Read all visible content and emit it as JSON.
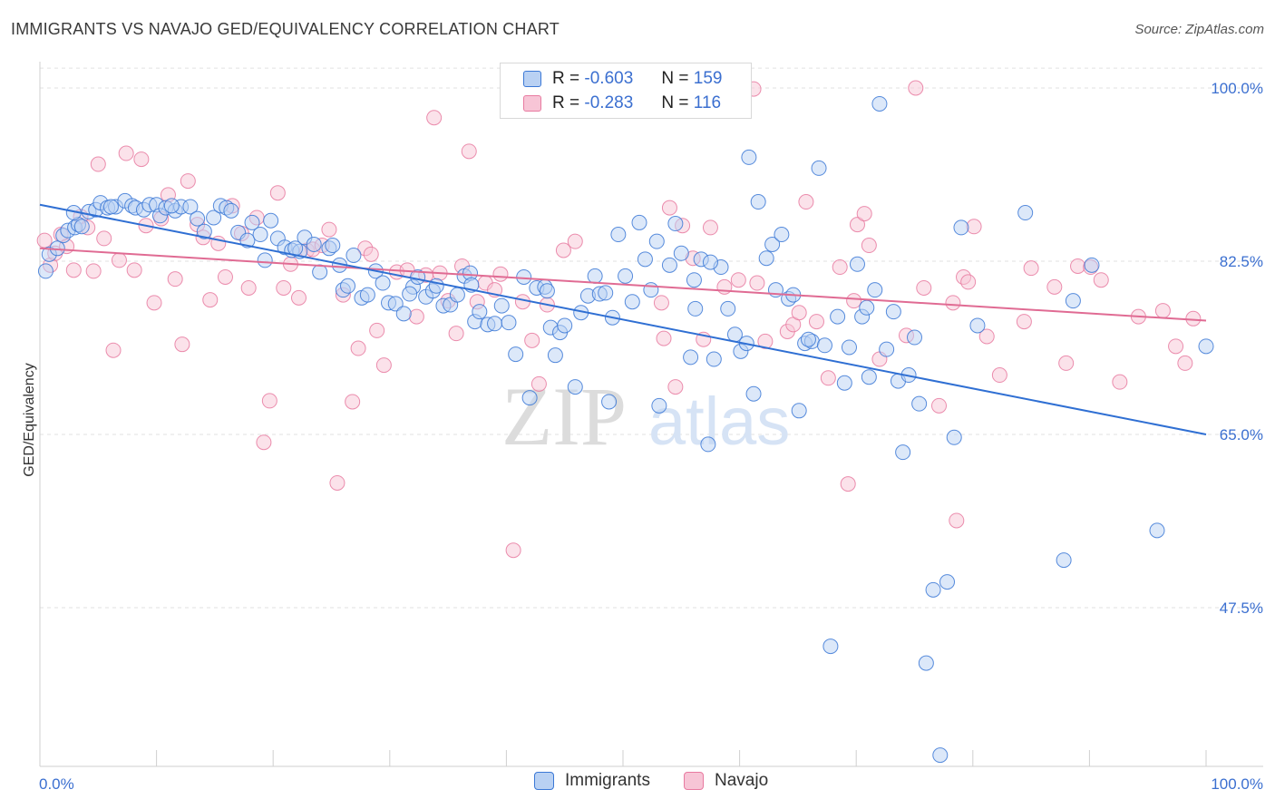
{
  "header": {
    "title": "IMMIGRANTS VS NAVAJO GED/EQUIVALENCY CORRELATION CHART",
    "source": "Source: ZipAtlas.com"
  },
  "legend": {
    "r_label": "R =",
    "n_label": "N =",
    "immigrants": {
      "r": "-0.603",
      "n": "159"
    },
    "navajo": {
      "r": "-0.283",
      "n": "116"
    }
  },
  "bottom_legend": {
    "immigrants": "Immigrants",
    "navajo": "Navajo"
  },
  "watermark": {
    "zip": "ZIP",
    "atlas": "atlas"
  },
  "chart_data": {
    "type": "scatter",
    "ylabel": "GED/Equivalency",
    "xlabel": "",
    "x_tick_labels": [
      "0.0%",
      "100.0%"
    ],
    "y_tick_labels": [
      "100.0%",
      "82.5%",
      "65.0%",
      "47.5%"
    ],
    "y_ticks": [
      100.0,
      82.5,
      65.0,
      47.5
    ],
    "xlim": [
      0,
      100
    ],
    "ylim": [
      30.0,
      102.0
    ],
    "grid": true,
    "colors": {
      "immigrants": "#3b78d6",
      "navajo": "#e87aa0",
      "immigrants_fill": "#b9d1f3",
      "navajo_fill": "#f7c5d6"
    },
    "series": [
      {
        "name": "Immigrants",
        "trend": {
          "x": [
            0,
            100
          ],
          "y": [
            88.2,
            65.0
          ]
        },
        "points": [
          [
            0.5,
            81.5
          ],
          [
            0.8,
            83.2
          ],
          [
            1.5,
            83.8
          ],
          [
            2.0,
            85.1
          ],
          [
            2.4,
            85.6
          ],
          [
            3.0,
            85.9
          ],
          [
            3.3,
            86.2
          ],
          [
            3.6,
            86.0
          ],
          [
            4.2,
            87.5
          ],
          [
            4.8,
            87.7
          ],
          [
            5.2,
            88.4
          ],
          [
            5.8,
            87.9
          ],
          [
            6.5,
            88.0
          ],
          [
            7.3,
            88.6
          ],
          [
            7.9,
            88.1
          ],
          [
            8.2,
            87.9
          ],
          [
            8.9,
            87.7
          ],
          [
            9.4,
            88.2
          ],
          [
            10.0,
            88.2
          ],
          [
            10.3,
            87.1
          ],
          [
            10.8,
            87.9
          ],
          [
            11.6,
            87.6
          ],
          [
            12.1,
            88.0
          ],
          [
            12.9,
            88.0
          ],
          [
            13.5,
            86.8
          ],
          [
            14.1,
            85.5
          ],
          [
            14.9,
            86.9
          ],
          [
            15.5,
            88.1
          ],
          [
            16.0,
            87.9
          ],
          [
            16.4,
            87.6
          ],
          [
            17.0,
            85.4
          ],
          [
            17.8,
            84.6
          ],
          [
            18.2,
            86.4
          ],
          [
            18.9,
            85.2
          ],
          [
            19.3,
            82.6
          ],
          [
            19.8,
            86.6
          ],
          [
            20.4,
            84.8
          ],
          [
            21.0,
            83.9
          ],
          [
            21.6,
            83.6
          ],
          [
            22.3,
            83.5
          ],
          [
            22.7,
            84.9
          ],
          [
            23.5,
            84.2
          ],
          [
            24.0,
            81.4
          ],
          [
            24.8,
            83.8
          ],
          [
            25.1,
            84.1
          ],
          [
            25.7,
            82.1
          ],
          [
            26.0,
            79.6
          ],
          [
            26.9,
            83.1
          ],
          [
            27.6,
            78.8
          ],
          [
            28.1,
            79.1
          ],
          [
            28.8,
            81.5
          ],
          [
            29.4,
            80.3
          ],
          [
            29.9,
            78.3
          ],
          [
            30.5,
            78.2
          ],
          [
            31.2,
            77.2
          ],
          [
            32.0,
            79.9
          ],
          [
            32.4,
            80.9
          ],
          [
            33.1,
            78.9
          ],
          [
            33.7,
            79.5
          ],
          [
            34.0,
            80.0
          ],
          [
            34.6,
            78.0
          ],
          [
            35.2,
            78.1
          ],
          [
            35.8,
            79.1
          ],
          [
            36.4,
            81.0
          ],
          [
            36.9,
            81.3
          ],
          [
            37.3,
            76.4
          ],
          [
            37.7,
            77.4
          ],
          [
            38.4,
            76.1
          ],
          [
            39.0,
            76.2
          ],
          [
            39.6,
            78.0
          ],
          [
            40.2,
            76.3
          ],
          [
            40.8,
            73.1
          ],
          [
            41.5,
            80.9
          ],
          [
            42.0,
            68.7
          ],
          [
            42.6,
            79.8
          ],
          [
            43.3,
            79.9
          ],
          [
            43.8,
            75.8
          ],
          [
            44.2,
            73.0
          ],
          [
            44.6,
            75.3
          ],
          [
            45.0,
            76.0
          ],
          [
            45.9,
            69.8
          ],
          [
            46.4,
            77.3
          ],
          [
            47.0,
            79.0
          ],
          [
            47.6,
            81.0
          ],
          [
            48.0,
            79.2
          ],
          [
            48.5,
            79.3
          ],
          [
            49.1,
            76.8
          ],
          [
            49.6,
            85.2
          ],
          [
            50.2,
            81.0
          ],
          [
            50.8,
            78.4
          ],
          [
            51.4,
            86.4
          ],
          [
            51.9,
            82.7
          ],
          [
            52.4,
            79.6
          ],
          [
            53.1,
            67.9
          ],
          [
            54.0,
            82.1
          ],
          [
            54.5,
            86.3
          ],
          [
            55.0,
            83.3
          ],
          [
            55.8,
            72.8
          ],
          [
            56.2,
            77.7
          ],
          [
            56.7,
            82.7
          ],
          [
            57.3,
            64.0
          ],
          [
            57.8,
            72.6
          ],
          [
            58.4,
            81.9
          ],
          [
            59.0,
            77.7
          ],
          [
            59.6,
            75.1
          ],
          [
            60.1,
            73.4
          ],
          [
            60.6,
            74.2
          ],
          [
            61.2,
            69.1
          ],
          [
            61.6,
            88.5
          ],
          [
            62.3,
            82.8
          ],
          [
            62.8,
            84.2
          ],
          [
            63.1,
            79.6
          ],
          [
            63.6,
            85.2
          ],
          [
            64.2,
            78.7
          ],
          [
            64.6,
            79.1
          ],
          [
            65.1,
            67.4
          ],
          [
            65.6,
            74.2
          ],
          [
            66.2,
            74.4
          ],
          [
            66.8,
            91.9
          ],
          [
            67.3,
            74.0
          ],
          [
            67.8,
            43.6
          ],
          [
            68.4,
            76.9
          ],
          [
            69.0,
            70.2
          ],
          [
            69.4,
            73.8
          ],
          [
            70.1,
            82.2
          ],
          [
            70.5,
            76.9
          ],
          [
            71.1,
            70.8
          ],
          [
            71.6,
            79.6
          ],
          [
            72.0,
            98.4
          ],
          [
            72.6,
            73.6
          ],
          [
            73.2,
            77.4
          ],
          [
            73.6,
            70.4
          ],
          [
            74.0,
            63.2
          ],
          [
            74.5,
            71.0
          ],
          [
            75.0,
            74.8
          ],
          [
            75.4,
            68.1
          ],
          [
            76.0,
            41.9
          ],
          [
            76.6,
            49.3
          ],
          [
            77.2,
            32.6
          ],
          [
            77.8,
            50.1
          ],
          [
            78.4,
            64.7
          ],
          [
            79.0,
            85.9
          ],
          [
            80.4,
            76.0
          ],
          [
            84.5,
            87.4
          ],
          [
            87.8,
            52.3
          ],
          [
            88.6,
            78.5
          ],
          [
            90.2,
            82.1
          ],
          [
            95.8,
            55.3
          ],
          [
            100.0,
            73.9
          ],
          [
            2.9,
            87.4
          ],
          [
            6.1,
            88.0
          ],
          [
            11.3,
            88.1
          ],
          [
            21.9,
            83.8
          ],
          [
            26.4,
            80.0
          ],
          [
            31.7,
            79.2
          ],
          [
            37.0,
            80.1
          ],
          [
            43.5,
            79.5
          ],
          [
            52.9,
            84.5
          ],
          [
            60.8,
            93.0
          ],
          [
            65.9,
            74.6
          ],
          [
            70.9,
            77.8
          ],
          [
            56.1,
            80.6
          ],
          [
            48.8,
            68.3
          ],
          [
            57.5,
            82.4
          ]
        ]
      },
      {
        "name": "Navajo",
        "trend": {
          "x": [
            0,
            100
          ],
          "y": [
            83.8,
            76.5
          ]
        },
        "points": [
          [
            0.4,
            84.6
          ],
          [
            0.9,
            82.1
          ],
          [
            1.3,
            83.3
          ],
          [
            1.8,
            85.2
          ],
          [
            2.3,
            84.0
          ],
          [
            2.9,
            81.6
          ],
          [
            3.5,
            87.0
          ],
          [
            4.1,
            85.9
          ],
          [
            4.6,
            81.5
          ],
          [
            5.0,
            92.3
          ],
          [
            5.5,
            84.8
          ],
          [
            6.3,
            73.5
          ],
          [
            6.8,
            82.6
          ],
          [
            7.4,
            93.4
          ],
          [
            8.1,
            81.6
          ],
          [
            8.7,
            92.8
          ],
          [
            9.1,
            86.1
          ],
          [
            9.8,
            78.3
          ],
          [
            10.4,
            86.8
          ],
          [
            11.0,
            89.2
          ],
          [
            11.6,
            80.7
          ],
          [
            12.2,
            74.1
          ],
          [
            12.7,
            90.6
          ],
          [
            13.5,
            86.2
          ],
          [
            14.0,
            84.9
          ],
          [
            14.6,
            78.6
          ],
          [
            15.3,
            84.3
          ],
          [
            15.9,
            80.9
          ],
          [
            16.5,
            88.1
          ],
          [
            17.3,
            85.3
          ],
          [
            17.9,
            79.8
          ],
          [
            18.6,
            86.9
          ],
          [
            19.2,
            64.2
          ],
          [
            19.7,
            68.4
          ],
          [
            20.4,
            89.4
          ],
          [
            20.9,
            79.8
          ],
          [
            21.5,
            82.2
          ],
          [
            22.2,
            78.8
          ],
          [
            22.9,
            83.6
          ],
          [
            23.4,
            83.7
          ],
          [
            24.2,
            84.1
          ],
          [
            24.8,
            85.7
          ],
          [
            25.5,
            60.1
          ],
          [
            26.0,
            79.1
          ],
          [
            26.8,
            68.3
          ],
          [
            27.3,
            73.7
          ],
          [
            27.9,
            83.8
          ],
          [
            28.4,
            83.2
          ],
          [
            28.9,
            75.5
          ],
          [
            29.5,
            72.0
          ],
          [
            30.6,
            81.4
          ],
          [
            31.5,
            81.6
          ],
          [
            32.3,
            76.9
          ],
          [
            33.1,
            81.1
          ],
          [
            33.8,
            97.0
          ],
          [
            34.3,
            81.3
          ],
          [
            35.0,
            78.5
          ],
          [
            35.7,
            75.2
          ],
          [
            36.2,
            82.0
          ],
          [
            36.8,
            93.6
          ],
          [
            37.5,
            78.4
          ],
          [
            38.2,
            80.3
          ],
          [
            39.0,
            79.6
          ],
          [
            39.5,
            81.2
          ],
          [
            40.6,
            53.3
          ],
          [
            41.4,
            78.4
          ],
          [
            42.2,
            74.5
          ],
          [
            42.8,
            70.1
          ],
          [
            43.5,
            78.1
          ],
          [
            44.9,
            83.6
          ],
          [
            45.9,
            84.5
          ],
          [
            53.5,
            74.7
          ],
          [
            53.3,
            78.3
          ],
          [
            54.0,
            87.9
          ],
          [
            54.5,
            69.8
          ],
          [
            55.1,
            86.1
          ],
          [
            56.0,
            82.8
          ],
          [
            56.9,
            74.6
          ],
          [
            57.5,
            85.9
          ],
          [
            58.7,
            79.9
          ],
          [
            59.9,
            80.6
          ],
          [
            61.5,
            80.3
          ],
          [
            62.2,
            74.4
          ],
          [
            64.1,
            75.4
          ],
          [
            64.6,
            76.1
          ],
          [
            65.1,
            77.3
          ],
          [
            65.7,
            88.5
          ],
          [
            66.6,
            76.4
          ],
          [
            67.6,
            70.7
          ],
          [
            68.6,
            81.9
          ],
          [
            69.3,
            60.0
          ],
          [
            69.8,
            78.5
          ],
          [
            70.1,
            86.2
          ],
          [
            70.7,
            87.3
          ],
          [
            71.1,
            84.1
          ],
          [
            72.0,
            72.6
          ],
          [
            74.3,
            75.0
          ],
          [
            75.8,
            79.8
          ],
          [
            77.1,
            67.9
          ],
          [
            78.3,
            78.3
          ],
          [
            78.6,
            56.3
          ],
          [
            79.2,
            80.9
          ],
          [
            79.6,
            80.4
          ],
          [
            80.1,
            86.0
          ],
          [
            81.2,
            74.9
          ],
          [
            82.3,
            71.0
          ],
          [
            84.4,
            76.4
          ],
          [
            85.0,
            81.8
          ],
          [
            87.0,
            79.9
          ],
          [
            88.0,
            72.2
          ],
          [
            89.0,
            82.0
          ],
          [
            90.1,
            81.9
          ],
          [
            91.0,
            80.6
          ],
          [
            92.6,
            70.3
          ],
          [
            94.2,
            76.9
          ],
          [
            96.3,
            77.5
          ],
          [
            97.4,
            73.9
          ],
          [
            98.2,
            72.2
          ],
          [
            98.9,
            76.7
          ],
          [
            75.1,
            100.0
          ],
          [
            59.6,
            99.6
          ],
          [
            52.2,
            100.0
          ],
          [
            61.2,
            99.9
          ]
        ]
      }
    ]
  }
}
